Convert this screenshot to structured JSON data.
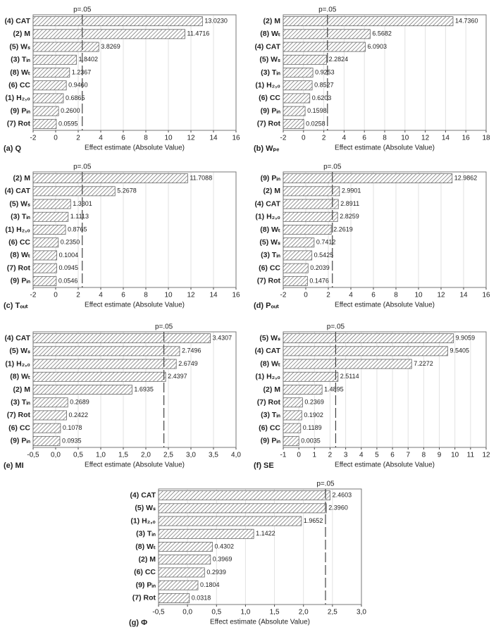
{
  "chart_data": [
    {
      "type": "bar",
      "orientation": "horizontal",
      "title": "(a) Q",
      "x_label": "Effect estimate (Absolute Value)",
      "categories": [
        "(4) CAT",
        "(2) M",
        "(5) Wₛ",
        "(3) Tᵢₙ",
        "(8) Wₜ",
        "(6) CC",
        "(1) H₂,₀",
        "(9) Pᵢₙ",
        "(7) Rot"
      ],
      "values": [
        13.023,
        11.4716,
        3.8269,
        1.8402,
        1.2367,
        0.946,
        0.6865,
        0.26,
        0.0595
      ],
      "value_labels": [
        "13.0230",
        "11.4716",
        "3.8269",
        "1.8402",
        "1.2367",
        "0.9460",
        "0.6865",
        "0.2600",
        "0.0595"
      ],
      "xlim": [
        -2,
        16
      ],
      "xticks": [
        -2,
        0,
        2,
        4,
        6,
        8,
        10,
        12,
        14,
        16
      ],
      "grid": true,
      "color": "#555555",
      "reference_line": {
        "value": 2.36,
        "label": "p=.05"
      }
    },
    {
      "type": "bar",
      "orientation": "horizontal",
      "title": "(b) Wₚₑ",
      "x_label": "Effect estimate (Absolute Value)",
      "categories": [
        "(2) M",
        "(8) Wₜ",
        "(4) CAT",
        "(5) Wₛ",
        "(3) Tᵢₙ",
        "(1) H₂,₀",
        "(6) CC",
        "(9) Pᵢₙ",
        "(7) Rot"
      ],
      "values": [
        14.736,
        6.5682,
        6.0903,
        2.2824,
        0.9253,
        0.8527,
        0.6203,
        0.1598,
        0.0258
      ],
      "value_labels": [
        "14.7360",
        "6.5682",
        "6.0903",
        "2.2824",
        "0.9253",
        "0.8527",
        "0.6203",
        "0.1598",
        "0.0258"
      ],
      "xlim": [
        -2,
        18
      ],
      "xticks": [
        -2,
        0,
        2,
        4,
        6,
        8,
        10,
        12,
        14,
        16,
        18
      ],
      "grid": true,
      "color": "#555555",
      "reference_line": {
        "value": 2.36,
        "label": "p=.05"
      }
    },
    {
      "type": "bar",
      "orientation": "horizontal",
      "title": "(c) Tₒᵤₜ",
      "x_label": "Effect estimate (Absolute Value)",
      "categories": [
        "(2) M",
        "(4) CAT",
        "(5) Wₛ",
        "(3) Tᵢₙ",
        "(1) H₂,₀",
        "(6) CC",
        "(8) Wₜ",
        "(7) Rot",
        "(9) Pᵢₙ"
      ],
      "values": [
        11.7088,
        5.2678,
        1.3301,
        1.1113,
        0.8765,
        0.235,
        0.1004,
        0.0945,
        0.0546
      ],
      "value_labels": [
        "11.7088",
        "5.2678",
        "1.3301",
        "1.1113",
        "0.8765",
        "0.2350",
        "0.1004",
        "0.0945",
        "0.0546"
      ],
      "xlim": [
        -2,
        16
      ],
      "xticks": [
        -2,
        0,
        2,
        4,
        6,
        8,
        10,
        12,
        14,
        16
      ],
      "grid": true,
      "color": "#555555",
      "reference_line": {
        "value": 2.36,
        "label": "p=.05"
      }
    },
    {
      "type": "bar",
      "orientation": "horizontal",
      "title": "(d) Pₒᵤₜ",
      "x_label": "Effect estimate (Absolute Value)",
      "categories": [
        "(9) Pᵢₙ",
        "(2) M",
        "(4) CAT",
        "(1) H₂,₀",
        "(8) Wₜ",
        "(5) Wₛ",
        "(3) Tᵢₙ",
        "(6) CC",
        "(7) Rot"
      ],
      "values": [
        12.9862,
        2.9901,
        2.8911,
        2.8259,
        2.2619,
        0.7412,
        0.5425,
        0.2039,
        0.1476
      ],
      "value_labels": [
        "12.9862",
        "2.9901",
        "2.8911",
        "2.8259",
        "2.2619",
        "0.7412",
        "0.5425",
        "0.2039",
        "0.1476"
      ],
      "xlim": [
        -2,
        16
      ],
      "xticks": [
        -2,
        0,
        2,
        4,
        6,
        8,
        10,
        12,
        14,
        16
      ],
      "grid": true,
      "color": "#555555",
      "reference_line": {
        "value": 2.36,
        "label": "p=.05"
      }
    },
    {
      "type": "bar",
      "orientation": "horizontal",
      "title": "(e) MI",
      "x_label": "Effect estimate (Absolute Value)",
      "categories": [
        "(4) CAT",
        "(5) Wₛ",
        "(1) H₂,₀",
        "(8) Wₜ",
        "(2) M",
        "(3) Tᵢₙ",
        "(7) Rot",
        "(6) CC",
        "(9) Pᵢₙ"
      ],
      "values": [
        3.4307,
        2.7496,
        2.6749,
        2.4397,
        1.6935,
        0.2689,
        0.2422,
        0.1078,
        0.0935
      ],
      "value_labels": [
        "3.4307",
        "2.7496",
        "2.6749",
        "2.4397",
        "1.6935",
        "0.2689",
        "0.2422",
        "0.1078",
        "0.0935"
      ],
      "xlim": [
        -0.5,
        4.0
      ],
      "xticks": [
        {
          "value": -0.5,
          "label": "-0,5"
        },
        {
          "value": 0,
          "label": "0,0"
        },
        {
          "value": 0.5,
          "label": "0,5"
        },
        {
          "value": 1,
          "label": "1,0"
        },
        {
          "value": 1.5,
          "label": "1,5"
        },
        {
          "value": 2,
          "label": "2,0"
        },
        {
          "value": 2.5,
          "label": "2,5"
        },
        {
          "value": 3,
          "label": "3,0"
        },
        {
          "value": 3.5,
          "label": "3,5"
        },
        {
          "value": 4,
          "label": "4,0"
        }
      ],
      "grid": true,
      "color": "#555555",
      "reference_line": {
        "value": 2.4,
        "label": "p=.05"
      }
    },
    {
      "type": "bar",
      "orientation": "horizontal",
      "title": "(f) SE",
      "x_label": "Effect estimate (Absolute Value)",
      "categories": [
        "(5) Wₛ",
        "(4) CAT",
        "(8) Wₜ",
        "(1) H₂,₀",
        "(2) M",
        "(7) Rot",
        "(3) Tᵢₙ",
        "(6) CC",
        "(9) Pᵢₙ"
      ],
      "values": [
        9.9059,
        9.5405,
        7.2272,
        2.5114,
        1.4895,
        0.2369,
        0.1902,
        0.1189,
        0.0035
      ],
      "value_labels": [
        "9.9059",
        "9.5405",
        "7.2272",
        "2.5114",
        "1.4895",
        "0.2369",
        "0.1902",
        "0.1189",
        "0.0035"
      ],
      "xlim": [
        -1,
        12
      ],
      "xticks": [
        -1,
        0,
        1,
        2,
        3,
        4,
        5,
        6,
        7,
        8,
        9,
        10,
        11,
        12
      ],
      "grid": true,
      "color": "#555555",
      "reference_line": {
        "value": 2.36,
        "label": "p=.05"
      }
    },
    {
      "type": "bar",
      "orientation": "horizontal",
      "title": "(g) Φ",
      "x_label": "Effect estimate (Absolute Value)",
      "categories": [
        "(4) CAT",
        "(5) Wₛ",
        "(1) H₂,₀",
        "(3) Tᵢₙ",
        "(8) Wₜ",
        "(2) M",
        "(6) CC",
        "(9) Pᵢₙ",
        "(7) Rot"
      ],
      "values": [
        2.4603,
        2.396,
        1.9652,
        1.1422,
        0.4302,
        0.3969,
        0.2939,
        0.1804,
        0.0318
      ],
      "value_labels": [
        "2.4603",
        "2.3960",
        "1.9652",
        "1.1422",
        "0.4302",
        "0.3969",
        "0.2939",
        "0.1804",
        "0.0318"
      ],
      "xlim": [
        -0.5,
        3.0
      ],
      "xticks": [
        {
          "value": -0.5,
          "label": "-0,5"
        },
        {
          "value": 0,
          "label": "0,0"
        },
        {
          "value": 0.5,
          "label": "0,5"
        },
        {
          "value": 1,
          "label": "1,0"
        },
        {
          "value": 1.5,
          "label": "1,5"
        },
        {
          "value": 2,
          "label": "2,0"
        },
        {
          "value": 2.5,
          "label": "2,5"
        },
        {
          "value": 3,
          "label": "3,0"
        }
      ],
      "grid": true,
      "color": "#555555",
      "reference_line": {
        "value": 2.38,
        "label": "p=.05"
      }
    }
  ]
}
